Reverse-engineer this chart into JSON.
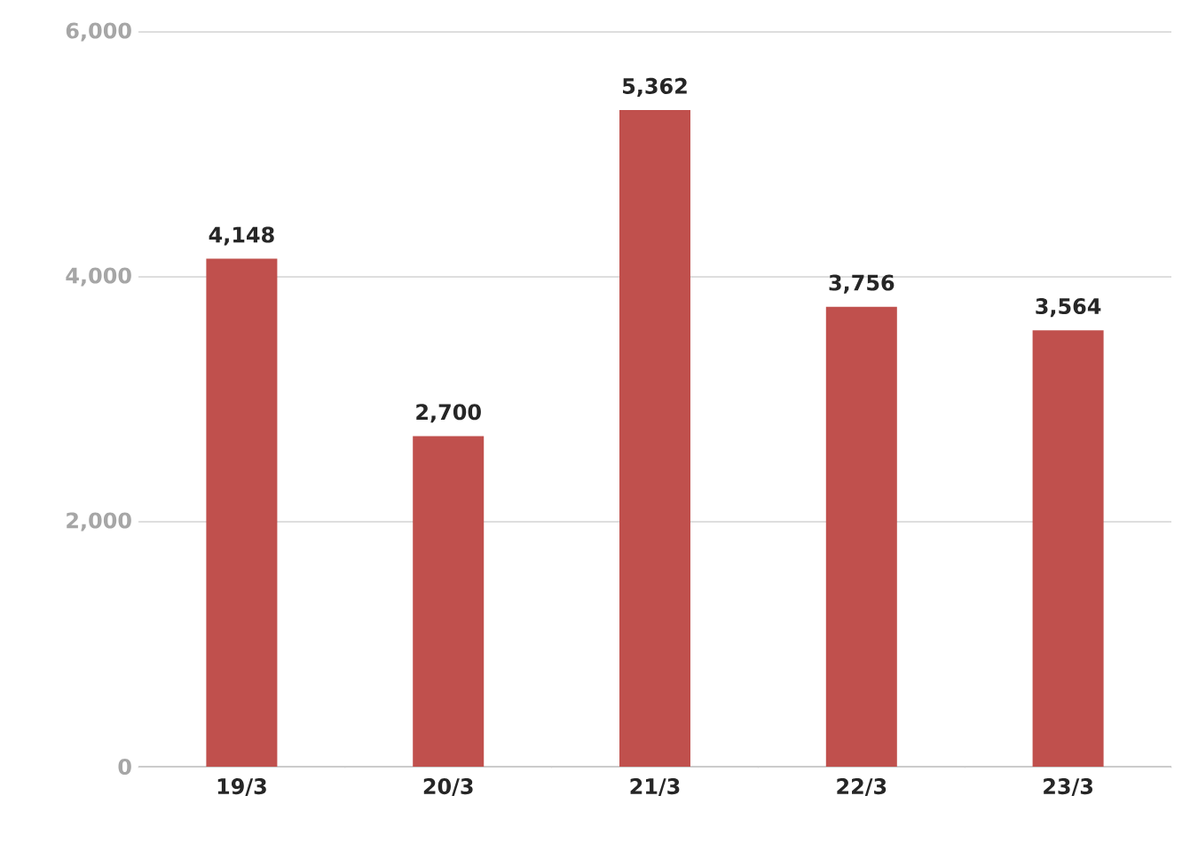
{
  "chart_data": {
    "type": "bar",
    "categories": [
      "19/3",
      "20/3",
      "21/3",
      "22/3",
      "23/3"
    ],
    "values": [
      4148,
      2700,
      5362,
      3756,
      3564
    ],
    "value_labels": [
      "4,148",
      "2,700",
      "5,362",
      "3,756",
      "3,564"
    ],
    "color": "#c0504d",
    "ylim": [
      0,
      6000
    ],
    "yticks": [
      0,
      {
        "value": 2000,
        "label": "2,000"
      },
      {
        "value": 4000,
        "label": "4,000"
      },
      {
        "value": 6000,
        "label": "6,000"
      }
    ],
    "grid": "y"
  }
}
